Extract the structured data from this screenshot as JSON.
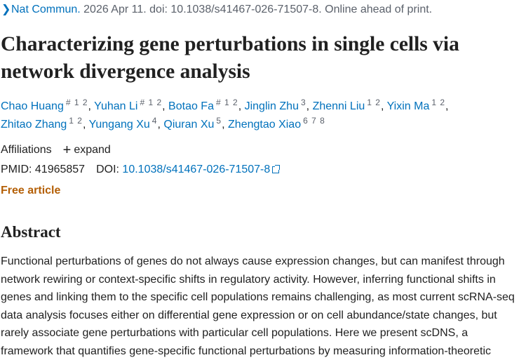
{
  "citation": {
    "journal": "Nat Commun.",
    "rest": " 2026 Apr 11. doi: 10.1038/s41467-026-71507-8. Online ahead of print."
  },
  "title": "Characterizing gene perturbations in single cells via network divergence analysis",
  "authors": [
    {
      "name": "Chao Huang",
      "sup": "# 1 2",
      "sep": ","
    },
    {
      "name": "Yuhan Li",
      "sup": "# 1 2",
      "sep": ","
    },
    {
      "name": "Botao Fa",
      "sup": "# 1 2",
      "sep": ","
    },
    {
      "name": "Jinglin Zhu",
      "sup": "3",
      "sep": ","
    },
    {
      "name": "Zhenni Liu",
      "sup": "1 2",
      "sep": ","
    },
    {
      "name": "Yixin Ma",
      "sup": "1 2",
      "sep": ","
    },
    {
      "name": "Zhitao Zhang",
      "sup": "1 2",
      "sep": ","
    },
    {
      "name": "Yungang Xu",
      "sup": "4",
      "sep": ","
    },
    {
      "name": "Qiuran Xu",
      "sup": "5",
      "sep": ","
    },
    {
      "name": "Zhengtao Xiao",
      "sup": "6 7 8",
      "sep": ""
    }
  ],
  "affiliations": {
    "label": "Affiliations",
    "plus": "+",
    "expand": "expand"
  },
  "ids": {
    "pmid_label": "PMID: 41965857",
    "doi_label": "DOI:",
    "doi": "10.1038/s41467-026-71507-8"
  },
  "free_article": "Free article",
  "abstract": {
    "heading": "Abstract",
    "text": "Functional perturbations of genes do not always cause expression changes, but can manifest through network rewiring or context-specific shifts in regulatory activity. However, inferring functional shifts in genes and linking them to the specific cell populations remains challenging, as most current scRNA-seq data analysis focuses either on differential gene expression or on cell abundance/state changes, but rarely associate gene perturbations with particular cell populations. Here we present scDNS, a framework that quantifies gene-specific functional perturbations by measuring information-theoretic"
  }
}
